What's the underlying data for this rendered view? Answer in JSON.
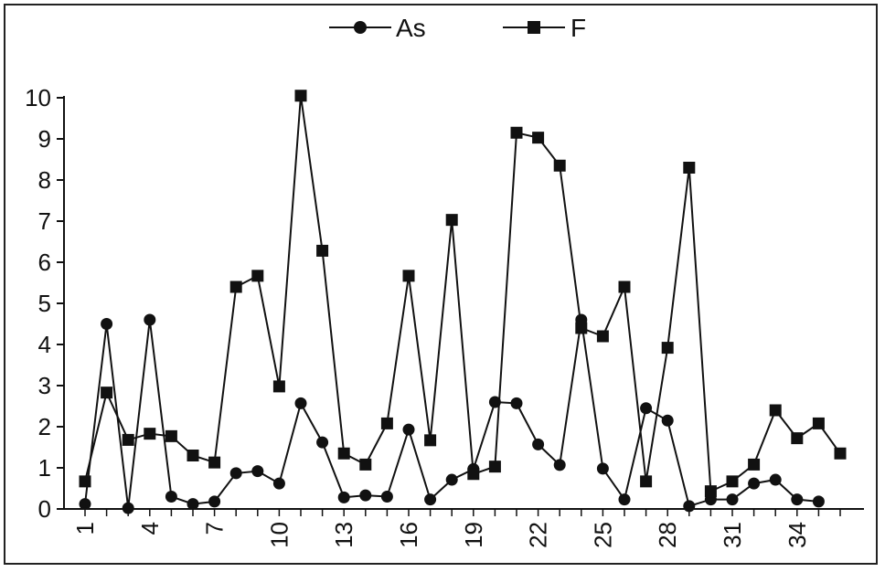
{
  "chart_data": {
    "type": "line",
    "x": [
      1,
      2,
      3,
      4,
      5,
      6,
      7,
      8,
      9,
      10,
      11,
      12,
      13,
      14,
      15,
      16,
      17,
      18,
      19,
      20,
      21,
      22,
      23,
      24,
      25,
      26,
      27,
      28,
      29,
      30,
      31,
      32,
      33,
      34,
      35,
      36
    ],
    "xtick_labels": [
      "1",
      "4",
      "7",
      "10",
      "13",
      "16",
      "19",
      "22",
      "25",
      "28",
      "31",
      "34"
    ],
    "xtick_values": [
      1,
      4,
      7,
      10,
      13,
      16,
      19,
      22,
      25,
      28,
      31,
      34
    ],
    "yticks": [
      "0",
      "1",
      "2",
      "3",
      "4",
      "5",
      "6",
      "7",
      "8",
      "9",
      "10"
    ],
    "ylim": [
      0,
      10
    ],
    "xlim": [
      1,
      36
    ],
    "legend_position": "top-center",
    "grid": false,
    "series": [
      {
        "name": "As",
        "marker": "circle",
        "color": "#111111",
        "values": [
          0.12,
          4.5,
          0.02,
          4.6,
          0.3,
          0.12,
          0.18,
          0.87,
          0.92,
          0.62,
          2.57,
          1.62,
          0.28,
          0.33,
          0.3,
          1.93,
          0.23,
          0.71,
          0.97,
          2.6,
          2.57,
          1.57,
          1.07,
          4.6,
          0.98,
          0.23,
          2.45,
          2.15,
          0.07,
          0.23,
          0.23,
          0.62,
          0.71,
          0.23,
          0.18,
          null
        ]
      },
      {
        "name": "F",
        "marker": "square",
        "color": "#111111",
        "values": [
          0.67,
          2.83,
          1.68,
          1.83,
          1.77,
          1.3,
          1.13,
          5.4,
          5.67,
          2.98,
          10.05,
          6.28,
          1.35,
          1.08,
          2.08,
          5.67,
          1.67,
          7.03,
          0.85,
          1.03,
          9.15,
          9.03,
          8.35,
          4.4,
          4.2,
          5.4,
          0.67,
          3.92,
          8.3,
          0.43,
          0.67,
          1.08,
          2.4,
          1.72,
          2.08,
          1.35
        ]
      }
    ]
  }
}
